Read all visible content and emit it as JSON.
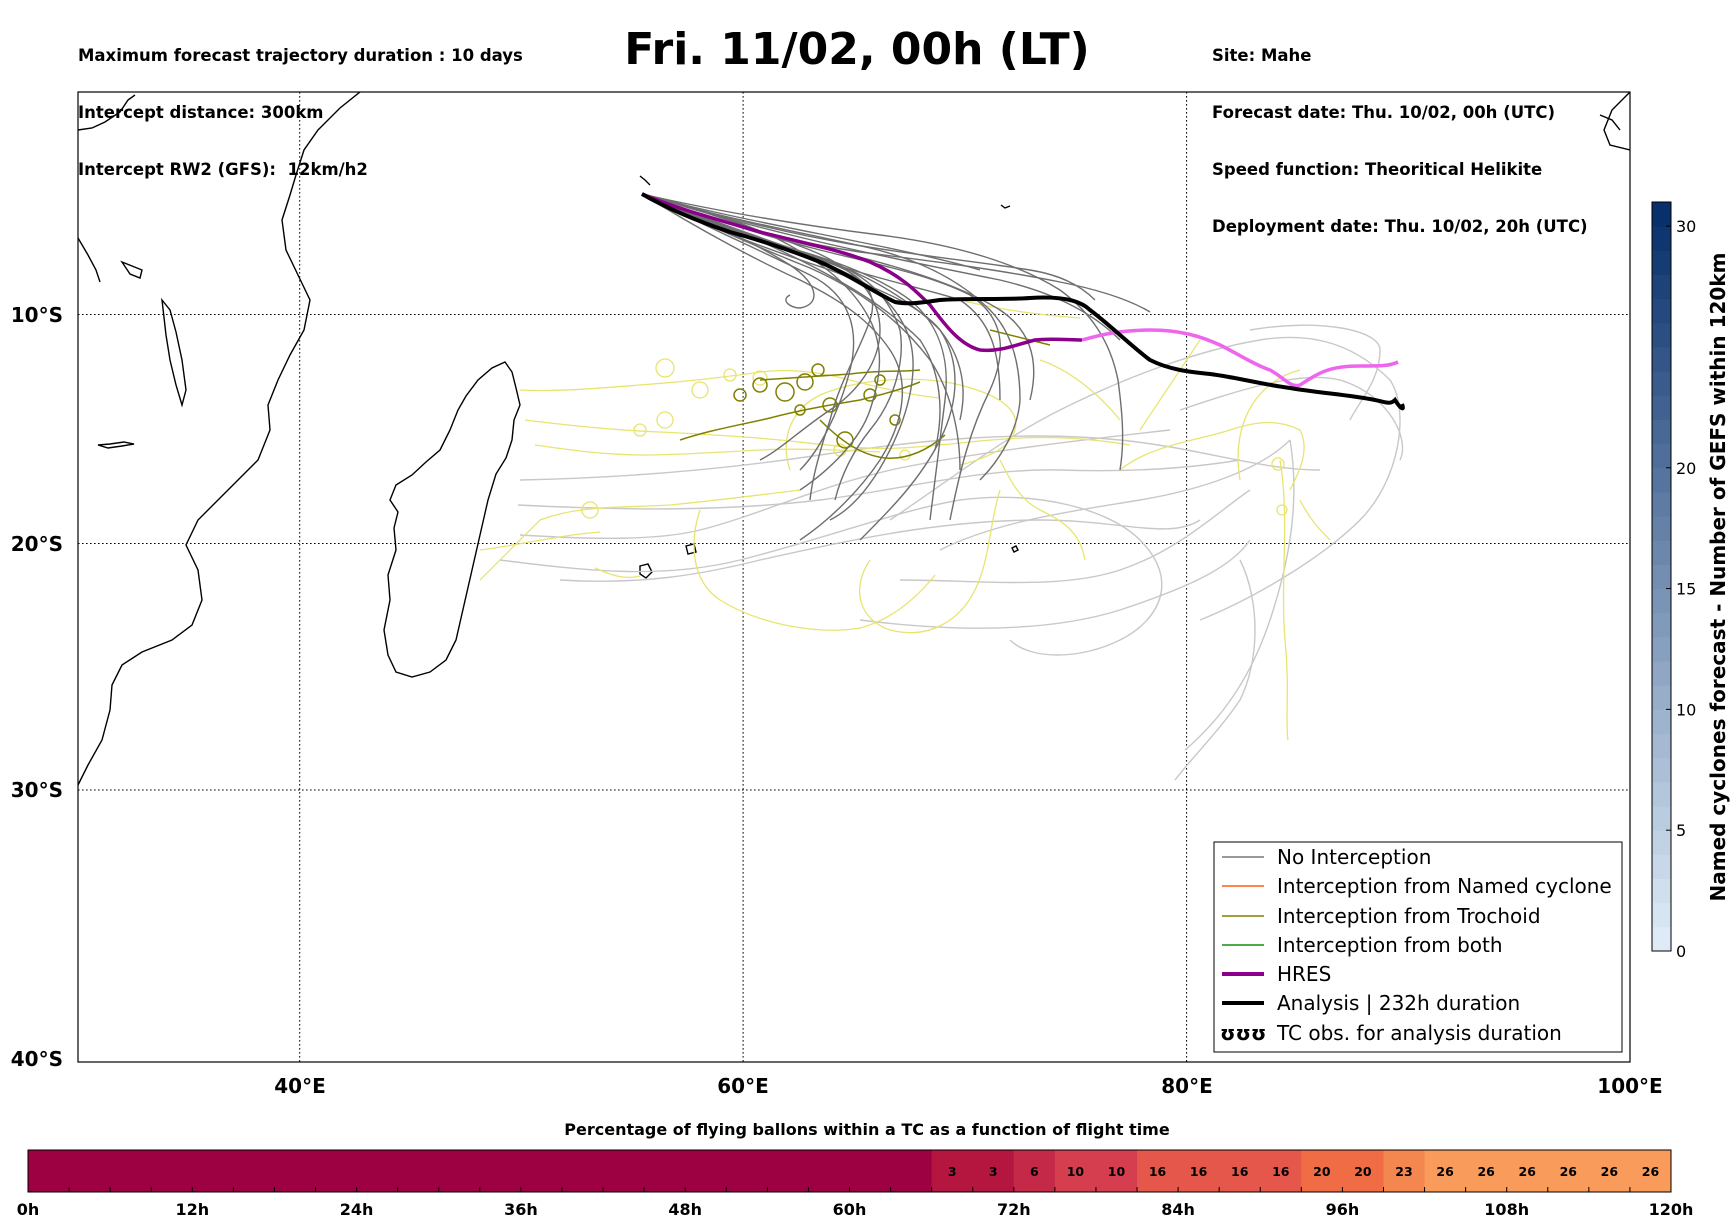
{
  "header": {
    "left": [
      "Maximum forecast trajectory duration : 10 days",
      "Intercept distance: 300km",
      "Intercept RW2 (GFS):  12km/h2"
    ],
    "right": [
      "Site: Mahe",
      "Forecast date: Thu. 10/02, 00h (UTC)",
      "Speed function: Theoritical Helikite",
      "Deployment date: Thu. 10/02, 20h (UTC)"
    ],
    "title": "Fri. 11/02, 00h (LT)"
  },
  "map": {
    "lon_range": [
      30,
      100
    ],
    "lat_range": [
      -40,
      0
    ],
    "lon_ticks": [
      {
        "value": 40,
        "label": "40°E"
      },
      {
        "value": 60,
        "label": "60°E"
      },
      {
        "value": 80,
        "label": "80°E"
      },
      {
        "value": 100,
        "label": "100°E"
      }
    ],
    "lat_ticks": [
      {
        "value": -10,
        "label": "10°S"
      },
      {
        "value": -20,
        "label": "20°S"
      },
      {
        "value": -30,
        "label": "30°S"
      },
      {
        "value": -40,
        "label": "40°S"
      }
    ],
    "gridlines": "dotted",
    "launch_site": {
      "name": "Mahe",
      "lon": 55.5,
      "lat": -4.6
    }
  },
  "legend": {
    "placement": "lower-right",
    "items": [
      {
        "label": "No Interception",
        "color": "#777777",
        "style": "thin"
      },
      {
        "label": "Interception from Named cyclone",
        "color": "#ff5a14",
        "style": "thin"
      },
      {
        "label": "Interception from Trochoid",
        "color": "#808000",
        "style": "thin"
      },
      {
        "label": "Interception from both",
        "color": "#109010",
        "style": "thin"
      },
      {
        "label": "HRES",
        "color": "#8b008b",
        "style": "thick"
      },
      {
        "label": "Analysis | 232h duration",
        "color": "#000000",
        "style": "thick"
      },
      {
        "label": "TC obs. for analysis duration",
        "color": "#000000",
        "style": "loops",
        "symbol": "ʊʊʊ"
      }
    ]
  },
  "colorbar": {
    "label": "Named cyclones forecast - Number of GEFS within 120km",
    "ticks": [
      {
        "value": 0,
        "label": "0"
      },
      {
        "value": 5,
        "label": "5"
      },
      {
        "value": 10,
        "label": "10"
      },
      {
        "value": 15,
        "label": "15"
      },
      {
        "value": 20,
        "label": "20"
      },
      {
        "value": 30,
        "label": "30"
      }
    ],
    "range": [
      0,
      31
    ],
    "colormap": "Blues"
  },
  "chart_data": {
    "type": "heatmap",
    "title": "Percentage of flying ballons within a TC as a function of flight time",
    "xlabel": "",
    "ylabel": "",
    "x_ticks": [
      "0h",
      "12h",
      "24h",
      "36h",
      "48h",
      "60h",
      "72h",
      "84h",
      "96h",
      "108h",
      "120h"
    ],
    "xlim": [
      0,
      120
    ],
    "bin_hours": 3,
    "values": [
      0,
      0,
      0,
      0,
      0,
      0,
      0,
      0,
      0,
      0,
      0,
      0,
      0,
      0,
      0,
      0,
      0,
      0,
      0,
      0,
      0,
      0,
      3,
      3,
      6,
      10,
      10,
      16,
      16,
      16,
      16,
      20,
      20,
      23,
      26,
      26,
      26,
      26,
      26,
      26
    ],
    "colors": {
      "zero": "#9e0142",
      "low": "#d53e4f",
      "mid": "#f46d43",
      "high": "#fdae61"
    }
  }
}
